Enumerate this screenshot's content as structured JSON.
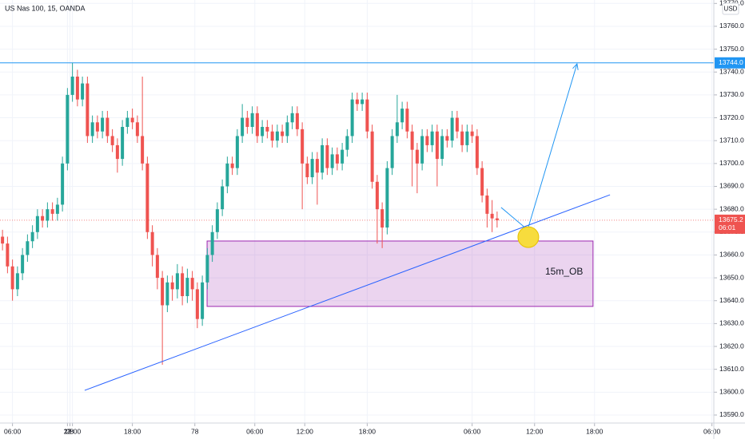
{
  "chart_data": {
    "type": "candlestick",
    "title": "US Nas 100, 15, OANDA",
    "currency": "USD",
    "x": [
      1,
      3,
      5,
      7,
      9,
      11,
      13,
      15,
      17,
      19,
      21,
      23,
      25,
      27,
      29,
      31,
      33,
      35,
      37,
      39,
      41,
      43,
      45,
      47,
      49,
      51,
      53,
      55,
      57,
      59,
      61,
      63,
      65,
      67,
      69,
      71,
      73,
      75,
      77,
      79,
      81,
      83,
      85,
      87,
      89,
      91,
      93,
      95,
      97,
      99,
      101,
      103,
      105,
      107,
      109,
      111,
      113,
      115,
      117,
      119,
      121,
      123,
      125,
      127,
      129,
      131,
      133,
      135,
      137,
      139,
      141,
      143,
      145,
      147,
      149,
      151,
      153,
      155,
      157,
      159,
      161,
      163,
      165,
      167,
      169,
      171,
      173,
      175,
      177,
      179,
      181,
      183,
      185,
      187,
      189,
      191,
      193,
      195,
      197,
      199
    ],
    "open": [
      13668,
      13665,
      13655,
      13645,
      13652,
      13660,
      13666,
      13670,
      13677,
      13675,
      13680,
      13678,
      13682,
      13700,
      13730,
      13738,
      13728,
      13735,
      13712,
      13718,
      13714,
      13720,
      13712,
      13708,
      13702,
      13716,
      13720,
      13718,
      13712,
      13700,
      13670,
      13660,
      13650,
      13638,
      13648,
      13645,
      13652,
      13642,
      13650,
      13645,
      13632,
      13648,
      13660,
      13670,
      13680,
      13690,
      13700,
      13698,
      13712,
      13720,
      13716,
      13722,
      13712,
      13716,
      13714,
      13710,
      13714,
      13712,
      13718,
      13722,
      13715,
      13700,
      13694,
      13702,
      13696,
      13708,
      13698,
      13704,
      13700,
      13706,
      13712,
      13728,
      13726,
      13728,
      13714,
      13692,
      13680,
      13672,
      13698,
      13712,
      13718,
      13724,
      13714,
      13706,
      13700,
      13712,
      13708,
      13714,
      13702,
      13712,
      13710,
      13720,
      13714,
      13708,
      13714,
      13712,
      13698,
      13686,
      13678,
      13676
    ],
    "high": [
      13671,
      13668,
      13658,
      13655,
      13663,
      13669,
      13673,
      13680,
      13680,
      13683,
      13683,
      13685,
      13703,
      13733,
      13744,
      13741,
      13738,
      13738,
      13721,
      13721,
      13723,
      13723,
      13715,
      13711,
      13719,
      13723,
      13724,
      13721,
      13738,
      13703,
      13673,
      13663,
      13653,
      13651,
      13651,
      13656,
      13655,
      13654,
      13653,
      13648,
      13651,
      13663,
      13673,
      13683,
      13693,
      13703,
      13703,
      13715,
      13726,
      13723,
      13725,
      13725,
      13719,
      13719,
      13717,
      13717,
      13717,
      13721,
      13725,
      13725,
      13718,
      13703,
      13705,
      13705,
      13711,
      13711,
      13707,
      13707,
      13709,
      13715,
      13731,
      13731,
      13731,
      13731,
      13717,
      13695,
      13683,
      13701,
      13715,
      13730,
      13727,
      13727,
      13717,
      13709,
      13715,
      13715,
      13717,
      13717,
      13715,
      13715,
      13723,
      13723,
      13717,
      13717,
      13717,
      13715,
      13701,
      13689,
      13684,
      13679
    ],
    "low": [
      13662,
      13652,
      13640,
      13642,
      13649,
      13657,
      13663,
      13667,
      13672,
      13672,
      13675,
      13675,
      13679,
      13697,
      13727,
      13725,
      13725,
      13709,
      13709,
      13711,
      13711,
      13709,
      13705,
      13696,
      13699,
      13713,
      13715,
      13709,
      13697,
      13667,
      13655,
      13645,
      13612,
      13635,
      13640,
      13641,
      13638,
      13639,
      13640,
      13628,
      13629,
      13645,
      13657,
      13667,
      13677,
      13687,
      13695,
      13695,
      13709,
      13713,
      13713,
      13709,
      13709,
      13711,
      13707,
      13707,
      13709,
      13709,
      13715,
      13712,
      13680,
      13691,
      13691,
      13682,
      13693,
      13695,
      13695,
      13697,
      13697,
      13703,
      13709,
      13723,
      13723,
      13711,
      13689,
      13665,
      13663,
      13669,
      13695,
      13709,
      13715,
      13711,
      13690,
      13687,
      13697,
      13705,
      13705,
      13690,
      13699,
      13707,
      13707,
      13711,
      13705,
      13705,
      13709,
      13695,
      13683,
      13672,
      13670,
      13672
    ],
    "close": [
      13665,
      13655,
      13645,
      13652,
      13660,
      13666,
      13670,
      13677,
      13675,
      13680,
      13678,
      13682,
      13700,
      13730,
      13738,
      13728,
      13735,
      13712,
      13718,
      13714,
      13720,
      13712,
      13708,
      13702,
      13716,
      13720,
      13718,
      13712,
      13700,
      13670,
      13660,
      13650,
      13638,
      13648,
      13645,
      13652,
      13642,
      13650,
      13645,
      13632,
      13648,
      13660,
      13670,
      13680,
      13690,
      13700,
      13698,
      13712,
      13720,
      13716,
      13722,
      13712,
      13716,
      13714,
      13710,
      13714,
      13712,
      13718,
      13722,
      13715,
      13700,
      13694,
      13702,
      13696,
      13708,
      13698,
      13704,
      13700,
      13706,
      13712,
      13728,
      13726,
      13728,
      13714,
      13692,
      13680,
      13672,
      13698,
      13712,
      13718,
      13724,
      13714,
      13706,
      13700,
      13712,
      13708,
      13714,
      13702,
      13712,
      13710,
      13720,
      13714,
      13708,
      13714,
      13712,
      13698,
      13686,
      13678,
      13676,
      13675.2
    ],
    "up_color": "#26a69a",
    "down_color": "#ef5350",
    "xlim": [
      0,
      285.76
    ],
    "xticks": [
      {
        "value": 5,
        "label": "06:00"
      },
      {
        "value": 29,
        "label": "12:00"
      },
      {
        "value": 53,
        "label": "18:00"
      },
      78,
      {
        "value": 102,
        "label": "06:00"
      },
      {
        "value": 122,
        "label": "12:00"
      },
      {
        "value": 147,
        "label": "18:00"
      },
      27,
      {
        "value": 189,
        "label": "06:00"
      },
      {
        "value": 214,
        "label": "12:00"
      },
      {
        "value": 238,
        "label": "18:00"
      },
      28,
      {
        "value": 285,
        "label": "06:00"
      }
    ],
    "ylim": [
      13586.5,
      13771.5
    ],
    "yticks": [
      {
        "value": 13590,
        "label": "13590.0"
      },
      {
        "value": 13600,
        "label": "13600.0"
      },
      {
        "value": 13610,
        "label": "13610.0"
      },
      {
        "value": 13620,
        "label": "13620.0"
      },
      {
        "value": 13630,
        "label": "13630.0"
      },
      {
        "value": 13640,
        "label": "13640.0"
      },
      {
        "value": 13650,
        "label": "13650.0"
      },
      {
        "value": 13660,
        "label": "13660.0"
      },
      {
        "value": 13670,
        "label": "13670.0"
      },
      {
        "value": 13680,
        "label": "13680.0"
      },
      {
        "value": 13690,
        "label": "13690.0"
      },
      {
        "value": 13700,
        "label": "13700.0"
      },
      {
        "value": 13710,
        "label": "13710.0"
      },
      {
        "value": 13720,
        "label": "13720.0"
      },
      {
        "value": 13730,
        "label": "13730.0"
      },
      {
        "value": 13740,
        "label": "13740.0"
      },
      {
        "value": 13750,
        "label": "13750.0"
      },
      {
        "value": 13760,
        "label": "13760.0"
      },
      {
        "value": 13770,
        "label": "13770.0"
      }
    ],
    "grid": true,
    "horizontal_line": {
      "value": 13744,
      "label": "13744.0",
      "color": "#2196f3"
    },
    "last_price": {
      "value": 13675.2,
      "label": "13675.2",
      "countdown": "06:01",
      "color": "#ef5350"
    },
    "zone": {
      "x": [
        82.9,
        237.4
      ],
      "y": [
        13637.5,
        13666.1
      ],
      "label": "15m_OB",
      "color": "#9c27b0"
    },
    "trendline": {
      "x": [
        33.9,
        244.2
      ],
      "y": [
        13600.8,
        13686.3
      ],
      "color": "#2962ff"
    },
    "arrow": {
      "x": [
        200.6,
        211.2,
        231
      ],
      "y": [
        13680.8,
        13671,
        13743.6
      ],
      "color": "#2196f3"
    },
    "marker": {
      "x": 211.5,
      "y": 13667.8,
      "color": "#f7dc3d"
    }
  }
}
